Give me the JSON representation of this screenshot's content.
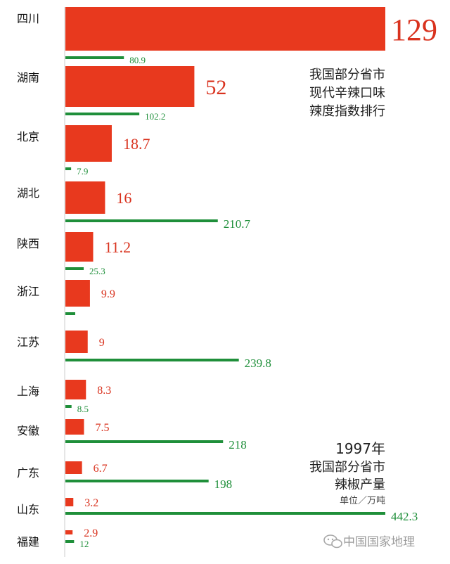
{
  "chart_data": [
    {
      "type": "bar",
      "orientation": "horizontal",
      "title_lines": [
        "我国部分省市",
        "现代辛辣口味",
        "辣度指数排行"
      ],
      "series_color": "#e8391e",
      "categories": [
        "四川",
        "湖南",
        "北京",
        "湖北",
        "陕西",
        "浙江",
        "江苏",
        "上海",
        "安徽",
        "广东",
        "山东",
        "福建"
      ],
      "values": [
        129,
        52,
        18.7,
        16,
        11.2,
        9.9,
        9,
        8.3,
        7.5,
        6.7,
        3.2,
        2.9
      ],
      "value_labels": [
        "129",
        "52",
        "18.7",
        "16",
        "11.2",
        "9.9",
        "9",
        "8.3",
        "7.5",
        "6.7",
        "3.2",
        "2.9"
      ],
      "xlim": [
        0,
        129
      ]
    },
    {
      "type": "bar",
      "orientation": "horizontal",
      "title_lines": [
        "1997年",
        "我国部分省市",
        "辣椒产量"
      ],
      "unit": "单位／万吨",
      "series_color": "#1f8f3a",
      "categories": [
        "四川",
        "湖南",
        "北京",
        "湖北",
        "陕西",
        "浙江",
        "江苏",
        "上海",
        "安徽",
        "广东",
        "山东",
        "福建"
      ],
      "values": [
        80.9,
        102.2,
        7.9,
        210.7,
        25.3,
        null,
        239.8,
        8.5,
        218,
        198,
        442.3,
        12
      ],
      "value_labels": [
        "80.9",
        "102.2",
        "7.9",
        "210.7",
        "25.3",
        "",
        "239.8",
        "8.5",
        "218",
        "198",
        "442.3",
        "12"
      ],
      "xlim": [
        0,
        442.3
      ]
    }
  ],
  "watermark": {
    "icon": "wechat-icon",
    "text": "中国国家地理"
  }
}
